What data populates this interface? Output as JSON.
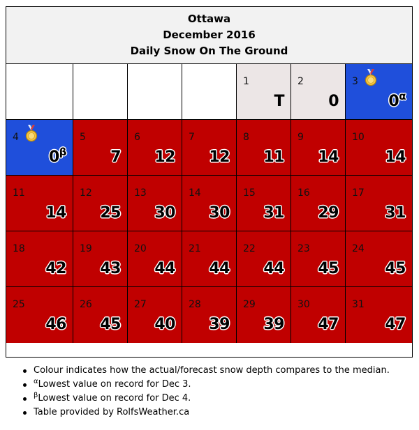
{
  "header": {
    "city": "Ottawa",
    "month": "December 2016",
    "subtitle": "Daily Snow On The Ground"
  },
  "colors": {
    "above_median": "#c00000",
    "record_low": "#1f4fdb",
    "trace": "#ece6e6",
    "empty": "#ffffff"
  },
  "leading_blank_days": 4,
  "days": [
    {
      "day": "1",
      "value": "T",
      "status": "trace"
    },
    {
      "day": "2",
      "value": "0",
      "status": "trace"
    },
    {
      "day": "3",
      "value": "0",
      "status": "record_low",
      "sup": "α",
      "icon": "medal-icon"
    },
    {
      "day": "4",
      "value": "0",
      "status": "record_low",
      "sup": "β",
      "icon": "medal-icon"
    },
    {
      "day": "5",
      "value": "7",
      "status": "above_median"
    },
    {
      "day": "6",
      "value": "12",
      "status": "above_median"
    },
    {
      "day": "7",
      "value": "12",
      "status": "above_median"
    },
    {
      "day": "8",
      "value": "11",
      "status": "above_median"
    },
    {
      "day": "9",
      "value": "14",
      "status": "above_median"
    },
    {
      "day": "10",
      "value": "14",
      "status": "above_median"
    },
    {
      "day": "11",
      "value": "14",
      "status": "above_median"
    },
    {
      "day": "12",
      "value": "25",
      "status": "above_median"
    },
    {
      "day": "13",
      "value": "30",
      "status": "above_median"
    },
    {
      "day": "14",
      "value": "30",
      "status": "above_median"
    },
    {
      "day": "15",
      "value": "31",
      "status": "above_median"
    },
    {
      "day": "16",
      "value": "29",
      "status": "above_median"
    },
    {
      "day": "17",
      "value": "31",
      "status": "above_median"
    },
    {
      "day": "18",
      "value": "42",
      "status": "above_median"
    },
    {
      "day": "19",
      "value": "43",
      "status": "above_median"
    },
    {
      "day": "20",
      "value": "44",
      "status": "above_median"
    },
    {
      "day": "21",
      "value": "44",
      "status": "above_median"
    },
    {
      "day": "22",
      "value": "44",
      "status": "above_median"
    },
    {
      "day": "23",
      "value": "45",
      "status": "above_median"
    },
    {
      "day": "24",
      "value": "45",
      "status": "above_median"
    },
    {
      "day": "25",
      "value": "46",
      "status": "above_median"
    },
    {
      "day": "26",
      "value": "45",
      "status": "above_median"
    },
    {
      "day": "27",
      "value": "40",
      "status": "above_median"
    },
    {
      "day": "28",
      "value": "39",
      "status": "above_median"
    },
    {
      "day": "29",
      "value": "39",
      "status": "above_median"
    },
    {
      "day": "30",
      "value": "47",
      "status": "above_median"
    },
    {
      "day": "31",
      "value": "47",
      "status": "above_median"
    }
  ],
  "notes": [
    {
      "sup": "",
      "text": "Colour indicates how the actual/forecast snow depth compares to the median."
    },
    {
      "sup": "α",
      "text": "Lowest value on record for Dec 3."
    },
    {
      "sup": "β",
      "text": "Lowest value on record for Dec 4."
    },
    {
      "sup": "",
      "text": "Table provided by RolfsWeather.ca"
    }
  ]
}
